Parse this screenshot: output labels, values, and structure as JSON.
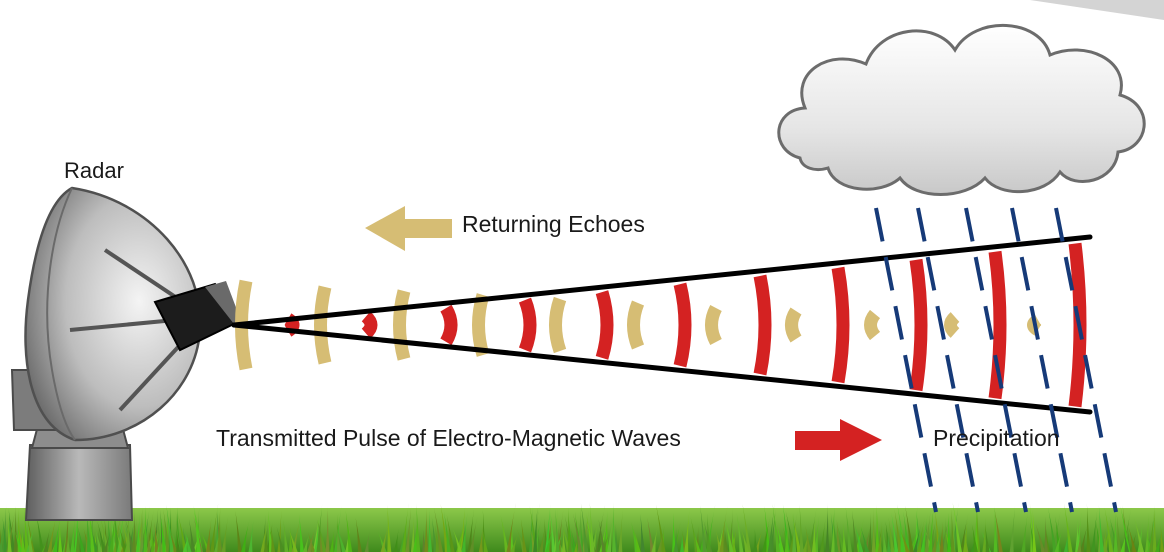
{
  "labels": {
    "radar": "Radar",
    "echoes": "Returning Echoes",
    "pulse": "Transmitted Pulse of Electro-Magnetic Waves",
    "precipitation": "Precipitation"
  },
  "colors": {
    "transmitted_pulse": "#d42222",
    "returning_echo": "#d6bd74",
    "rain_streak": "#163a78",
    "beam_edge": "#000000",
    "grass": "#62a82c"
  },
  "icons": {
    "radar": "radar-dish-icon",
    "cloud": "cloud-icon",
    "echo_arrow": "arrow-left-icon",
    "pulse_arrow": "arrow-right-icon"
  }
}
